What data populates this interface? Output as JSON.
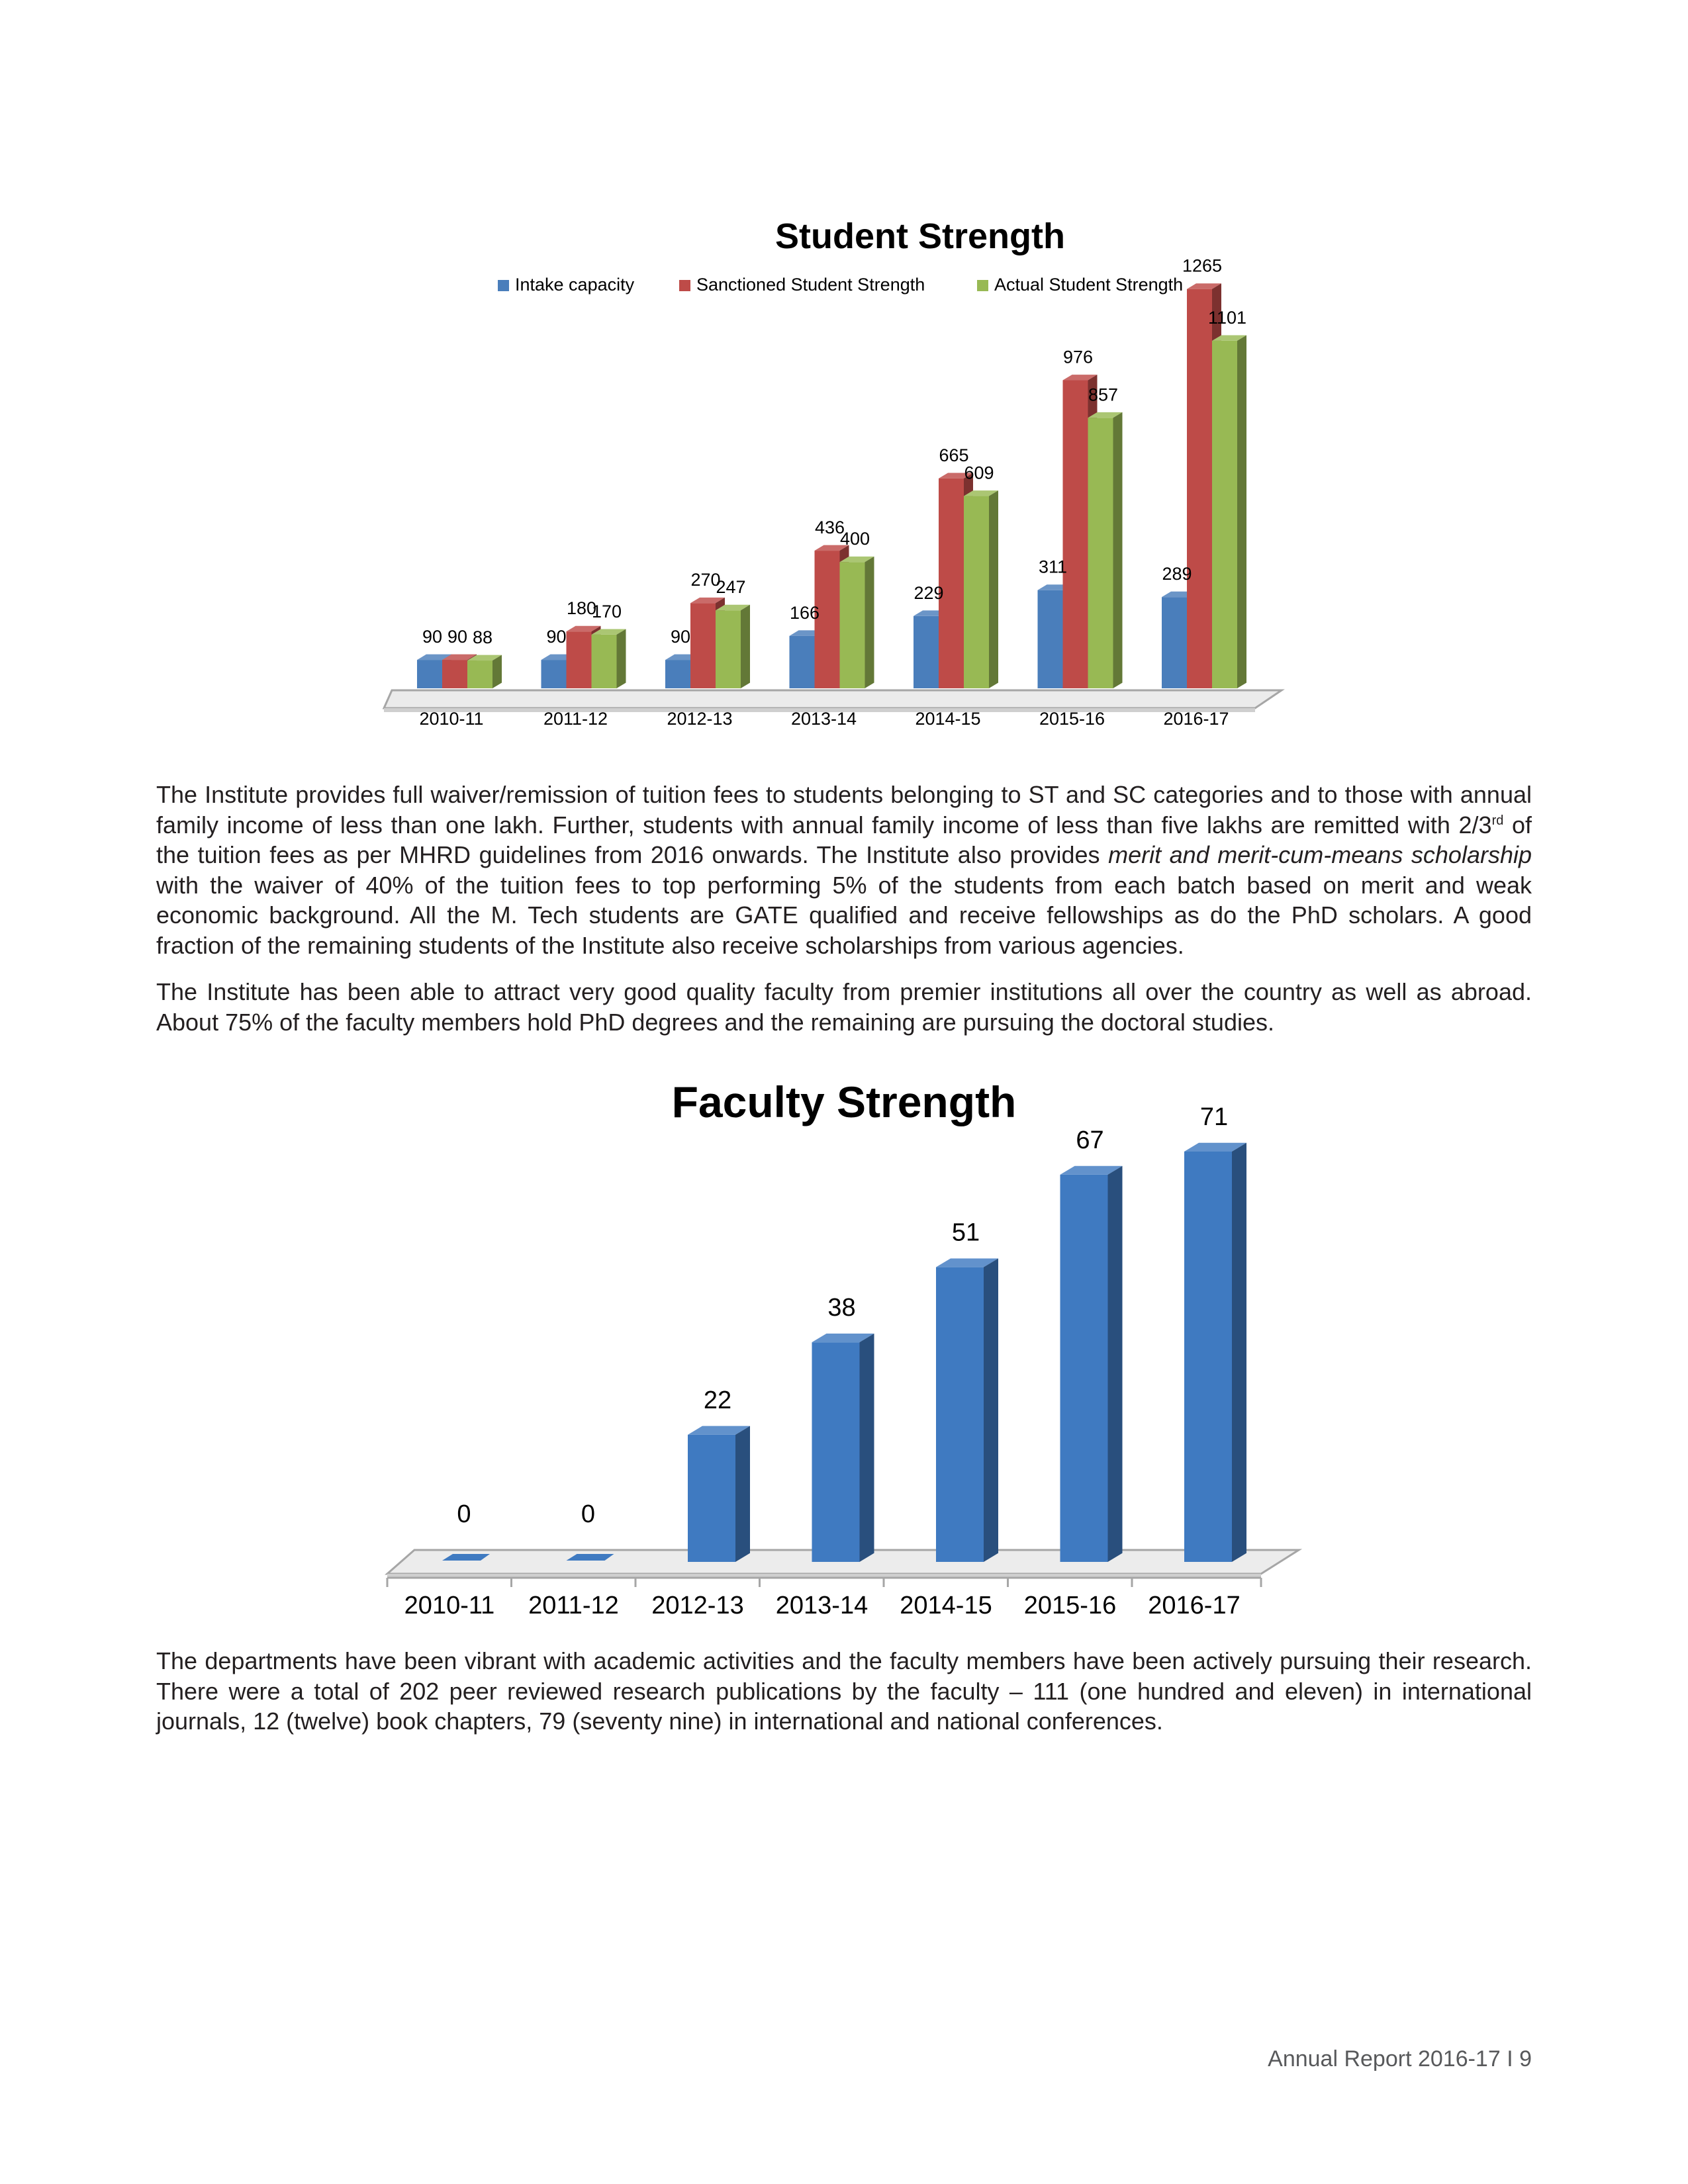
{
  "chart_data": [
    {
      "type": "bar",
      "title": "Student Strength",
      "legend_position": "top",
      "categories": [
        "2010-11",
        "2011-12",
        "2012-13",
        "2013-14",
        "2014-15",
        "2015-16",
        "2016-17"
      ],
      "series": [
        {
          "name": "Intake capacity",
          "color": "#4a7ebb",
          "values": [
            90,
            90,
            90,
            166,
            229,
            311,
            289
          ]
        },
        {
          "name": "Sanctioned Student Strength",
          "color": "#be4b48",
          "values": [
            90,
            180,
            270,
            436,
            665,
            976,
            1265
          ]
        },
        {
          "name": "Actual Student Strength",
          "color": "#98b954",
          "values": [
            88,
            170,
            247,
            400,
            609,
            857,
            1101
          ]
        }
      ],
      "data_labels": [
        [
          "90",
          "90",
          "88"
        ],
        [
          "90",
          "180",
          "170"
        ],
        [
          "90",
          "270",
          "247"
        ],
        [
          "166",
          "436",
          "400"
        ],
        [
          "229",
          "665",
          "609"
        ],
        [
          "311",
          "976",
          "857"
        ],
        [
          "289",
          "1265",
          "1101"
        ]
      ],
      "ylim": [
        0,
        1300
      ],
      "grid": false,
      "style": "3d-column"
    },
    {
      "type": "bar",
      "title": "Faculty Strength",
      "categories": [
        "2010-11",
        "2011-12",
        "2012-13",
        "2013-14",
        "2014-15",
        "2015-16",
        "2016-17"
      ],
      "series": [
        {
          "color": "#3f7ac1",
          "values": [
            0,
            0,
            22,
            38,
            51,
            67,
            71
          ]
        }
      ],
      "data_labels": [
        "0",
        "0",
        "22",
        "38",
        "51",
        "67",
        "71"
      ],
      "ylim": [
        0,
        71
      ],
      "grid": false,
      "style": "3d-column"
    }
  ],
  "text": {
    "para1_a": "The Institute provides full waiver/remission of tuition fees to students belonging to ST and SC categories and to those with annual family income of less than one lakh. Further, students with annual family income of less than five lakhs are remitted with 2/3",
    "para1_sup": "rd",
    "para1_b": " of the tuition fees as per MHRD guidelines from 2016 onwards. The Institute also provides ",
    "para1_em1": "merit and merit-cum-means scholarship",
    "para1_c": " with the waiver of 40% of the tuition fees to top performing 5% of the students from each batch based on merit and weak economic background. All the M. Tech students are GATE qualified and receive fellowships as do the PhD scholars. A good fraction of the remaining students of the Institute also receive scholarships from various agencies.",
    "para2": "The Institute has been able to attract very good quality faculty from premier institutions all over the country as well as abroad. About 75% of the faculty members hold PhD degrees and the remaining are pursuing the doctoral studies.",
    "para3": "The departments have been vibrant with academic activities and the faculty members have been actively pursuing their research. There were a total of 202 peer reviewed research publications by the faculty – 111 (one hundred and eleven) in international journals, 12 (twelve) book chapters, 79 (seventy nine) in international and national conferences."
  },
  "footer": "Annual Report 2016-17 I 9"
}
